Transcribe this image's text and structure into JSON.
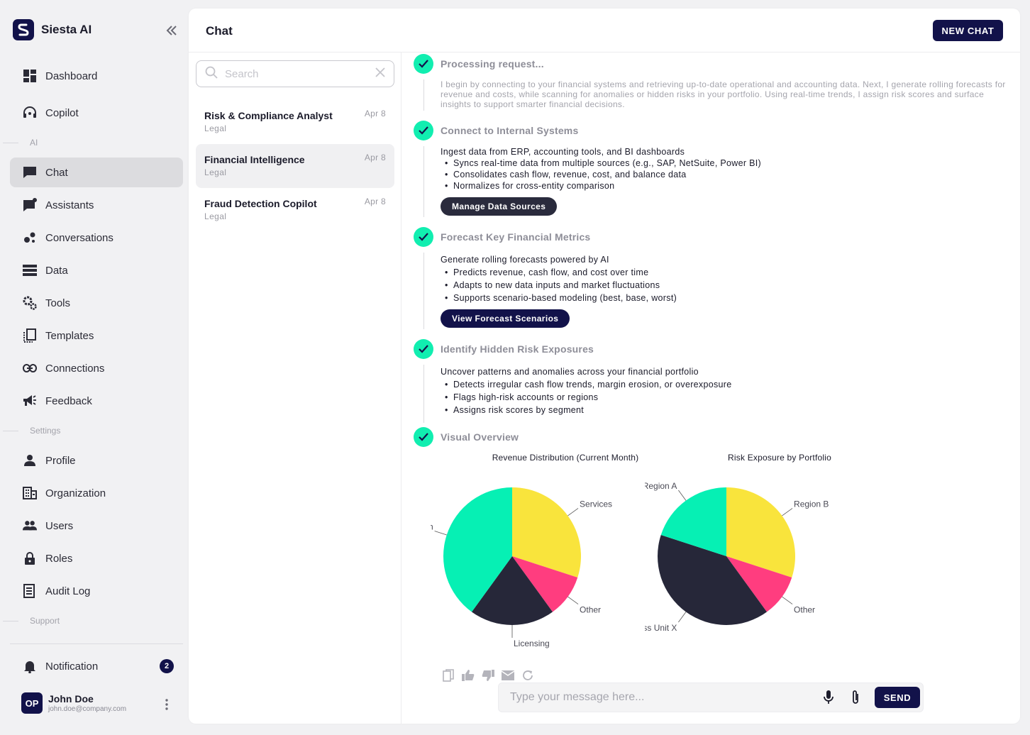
{
  "app": {
    "name": "Siesta AI"
  },
  "sidebar": {
    "items": [
      {
        "label": "Dashboard",
        "icon": "dashboard-icon"
      },
      {
        "label": "Copilot",
        "icon": "headset-icon"
      },
      {
        "label": "Chat",
        "icon": "chat-icon",
        "active": true
      },
      {
        "label": "Assistants",
        "icon": "assistant-icon"
      },
      {
        "label": "Conversations",
        "icon": "bubbles-icon"
      },
      {
        "label": "Data",
        "icon": "database-icon"
      },
      {
        "label": "Tools",
        "icon": "gears-icon"
      },
      {
        "label": "Templates",
        "icon": "templates-icon"
      },
      {
        "label": "Connections",
        "icon": "link-icon"
      },
      {
        "label": "Feedback",
        "icon": "megaphone-icon"
      },
      {
        "label": "Profile",
        "icon": "person-icon"
      },
      {
        "label": "Organization",
        "icon": "building-icon"
      },
      {
        "label": "Users",
        "icon": "users-icon"
      },
      {
        "label": "Roles",
        "icon": "lock-icon"
      },
      {
        "label": "Audit Log",
        "icon": "log-icon"
      }
    ],
    "sections": {
      "ai": "AI",
      "settings": "Settings",
      "support": "Support"
    },
    "notification": {
      "label": "Notification",
      "count": "2"
    },
    "user": {
      "initials": "OP",
      "name": "John Doe",
      "email": "john.doe@company.com"
    }
  },
  "header": {
    "title": "Chat",
    "new_chat": "NEW CHAT"
  },
  "search": {
    "placeholder": "Search"
  },
  "conversations": [
    {
      "title": "Risk & Compliance Analyst",
      "sub": "Legal",
      "date": "Apr 8"
    },
    {
      "title": "Financial Intelligence",
      "sub": "Legal",
      "date": "Apr 8",
      "active": true
    },
    {
      "title": "Fraud Detection Copilot",
      "sub": "Legal",
      "date": "Apr 8"
    }
  ],
  "steps": {
    "processing": {
      "title": "Processing request...",
      "desc": "I begin by connecting to your financial systems and retrieving up-to-date operational and accounting data. Next, I generate rolling forecasts for revenue and costs, while scanning for anomalies or hidden risks in your portfolio. Using real-time trends, I assign risk scores and surface insights to support smarter financial decisions."
    },
    "connect": {
      "title": "Connect to Internal Systems",
      "intro": "Ingest data from ERP, accounting tools, and BI dashboards",
      "bullets": [
        "Syncs real-time data from multiple sources (e.g., SAP, NetSuite, Power BI)",
        "Consolidates cash flow, revenue, cost, and balance data",
        "Normalizes for cross-entity comparison"
      ],
      "button": "Manage Data Sources"
    },
    "forecast": {
      "title": "Forecast Key Financial Metrics",
      "intro": "Generate rolling forecasts powered by AI",
      "bullets": [
        "Predicts revenue, cash flow, and cost over time",
        "Adapts to new data inputs and market fluctuations",
        "Supports scenario-based modeling (best, base, worst)"
      ],
      "button": "View Forecast Scenarios"
    },
    "risk": {
      "title": "Identify Hidden Risk Exposures",
      "intro": "Uncover patterns and anomalies across your financial portfolio",
      "bullets": [
        "Detects irregular cash flow trends, margin erosion, or overexposure",
        "Flags high-risk accounts or regions",
        "Assigns risk scores by segment"
      ]
    },
    "visual": {
      "title": "Visual Overview"
    }
  },
  "chart_data": [
    {
      "type": "pie",
      "title": "Revenue Distribution (Current Month)",
      "categories": [
        "Services",
        "Other",
        "Licensing",
        "Subscription"
      ],
      "values": [
        30,
        10,
        20,
        40
      ],
      "colors": [
        "#f9e43c",
        "#ff3d7f",
        "#262739",
        "#06f0b4"
      ]
    },
    {
      "type": "pie",
      "title": "Risk Exposure by Portfolio",
      "categories": [
        "Region B",
        "Other",
        "Business Unit X",
        "Region A"
      ],
      "values": [
        30,
        10,
        40,
        20
      ],
      "colors": [
        "#f9e43c",
        "#ff3d7f",
        "#262739",
        "#06f0b4"
      ]
    }
  ],
  "composer": {
    "placeholder": "Type your message here...",
    "send": "SEND"
  },
  "colors": {
    "accent": "#12124a",
    "check": "#11eeb0"
  }
}
